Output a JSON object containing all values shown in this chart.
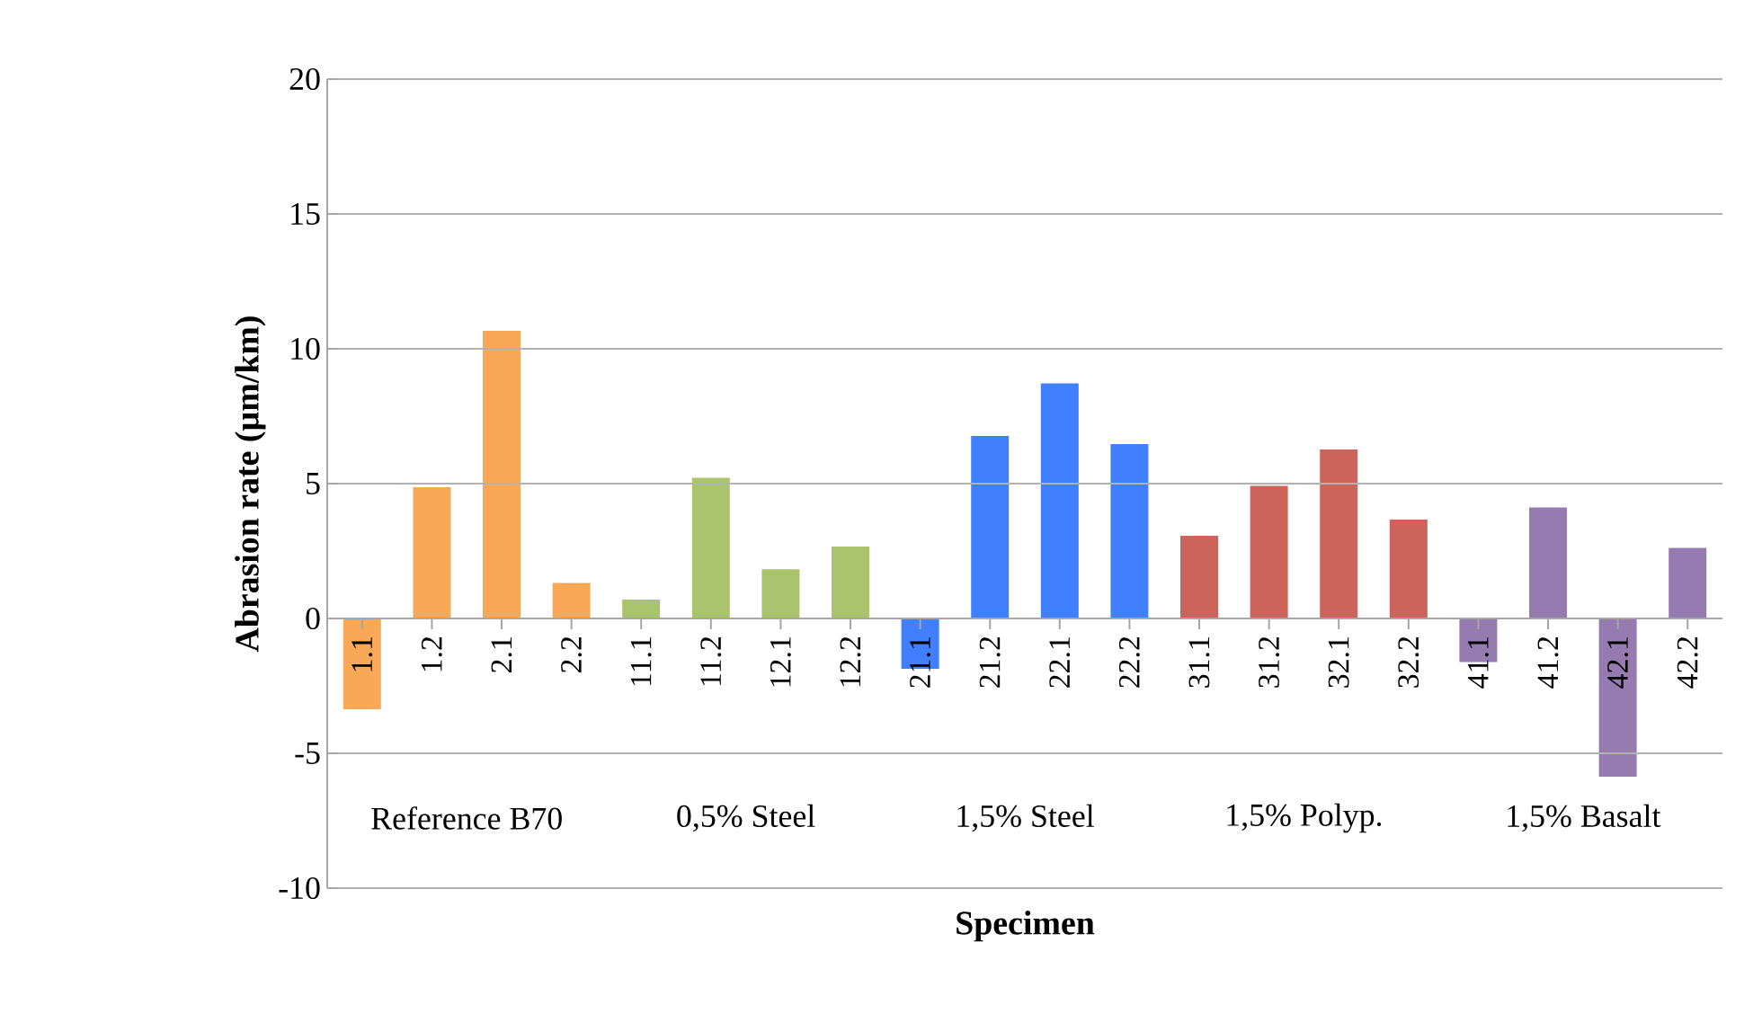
{
  "chart_data": {
    "type": "bar",
    "xlabel": "Specimen",
    "ylabel": "Abrasion rate (µm/km)",
    "categories": [
      "1.1",
      "1.2",
      "2.1",
      "2.2",
      "11.1",
      "11.2",
      "12.1",
      "12.2",
      "21.1",
      "21.2",
      "22.1",
      "22.2",
      "31.1",
      "31.2",
      "32.1",
      "32.2",
      "41.1",
      "41.2",
      "42.1",
      "42.2"
    ],
    "values": [
      -3.4,
      4.9,
      10.7,
      1.35,
      0.73,
      5.25,
      1.86,
      2.7,
      -1.9,
      6.8,
      8.75,
      6.5,
      3.1,
      4.95,
      6.3,
      3.7,
      -1.65,
      4.15,
      -5.9,
      2.65
    ],
    "colors": [
      "#f9a857",
      "#f9a857",
      "#f9a857",
      "#f9a857",
      "#a9c46c",
      "#a9c46c",
      "#a9c46c",
      "#a9c46c",
      "#4080ff",
      "#4080ff",
      "#4080ff",
      "#4080ff",
      "#cd645c",
      "#cd645c",
      "#cd645c",
      "#cd645c",
      "#957bb0",
      "#957bb0",
      "#957bb0",
      "#957bb0"
    ],
    "ylim": [
      -10,
      20
    ],
    "yticks": [
      -10,
      -5,
      0,
      5,
      10,
      15,
      20
    ],
    "grid": "y",
    "annotations": [
      "Reference B70",
      "0,5% Steel",
      "1,5% Steel",
      "1,5% Polyp.",
      "1,5% Basalt"
    ]
  }
}
